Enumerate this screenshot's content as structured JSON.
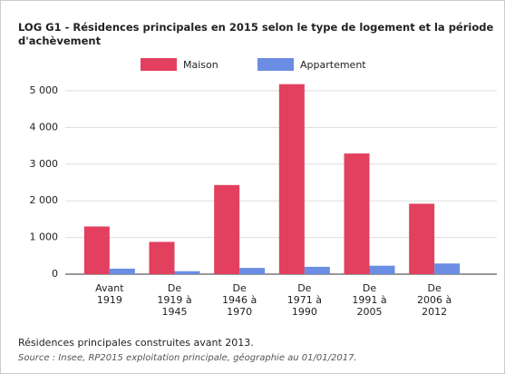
{
  "chart_data": {
    "type": "bar",
    "title": "LOG G1 - Résidences principales en 2015 selon le type de logement et la période d'achèvement",
    "categories": [
      "Avant\n1919",
      "De\n1919 à\n1945",
      "De\n1946 à\n1970",
      "De\n1971 à\n1990",
      "De\n1991 à\n2005",
      "De\n2006 à\n2012"
    ],
    "series": [
      {
        "name": "Maison",
        "color": "#e2405e",
        "values": [
          1300,
          880,
          2430,
          5180,
          3290,
          1920
        ]
      },
      {
        "name": "Appartement",
        "color": "#6b8de3",
        "values": [
          150,
          80,
          170,
          200,
          230,
          290
        ]
      }
    ],
    "ylim": [
      0,
      5000
    ],
    "yticks": [
      0,
      {
        "value": 1000,
        "label": "1 000"
      },
      {
        "value": 2000,
        "label": "2 000"
      },
      {
        "value": 3000,
        "label": "3 000"
      },
      {
        "value": 4000,
        "label": "4 000"
      },
      {
        "value": 5000,
        "label": "5 000"
      }
    ],
    "grid": true,
    "legend": "top",
    "note": "Résidences principales construites avant 2013.",
    "source": "Source : Insee, RP2015 exploitation principale, géographie au 01/01/2017."
  }
}
